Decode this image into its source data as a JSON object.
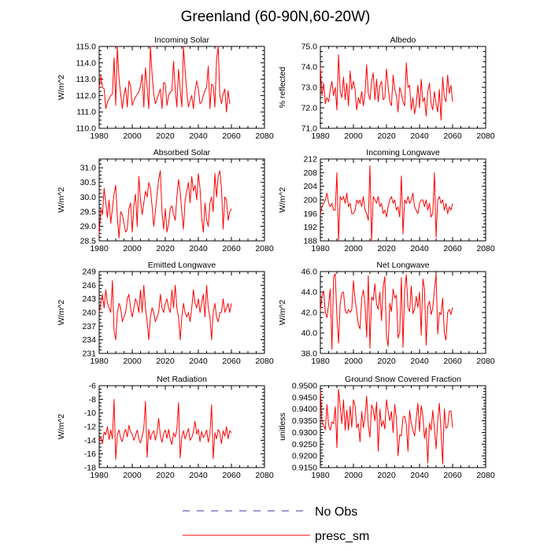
{
  "figure": {
    "title": "Greenland (60-90N,60-20W)"
  },
  "legend": {
    "entries": [
      {
        "label": "No Obs",
        "style": "dashed",
        "color": "#3a3aa0"
      },
      {
        "label": "presc_sm",
        "style": "solid",
        "color": "#ff0000"
      }
    ]
  },
  "colors": {
    "series": "#ff0000",
    "axis": "#000000"
  },
  "chart_data": [
    {
      "type": "line",
      "title": "Incoming Solar",
      "xlabel": "",
      "ylabel": "W/m^2",
      "xlim": [
        1980,
        2080
      ],
      "ylim": [
        110.0,
        115.0
      ],
      "xticks": [
        1980,
        2000,
        2020,
        2040,
        2060,
        2080
      ],
      "yticks": [
        110.0,
        111.0,
        112.0,
        113.0,
        114.0,
        115.0
      ],
      "ytick_labels": [
        "110.0",
        "111.0",
        "112.0",
        "113.0",
        "114.0",
        "115.0"
      ],
      "x_start": 1980,
      "x_step": 1,
      "series": [
        {
          "name": "presc_sm",
          "values": [
            112.5,
            113.2,
            112.5,
            112.4,
            111.2,
            111.6,
            111.8,
            112.0,
            112.1,
            114.3,
            111.4,
            115.0,
            113.0,
            112.1,
            111.2,
            112.0,
            112.5,
            111.3,
            112.9,
            112.6,
            111.4,
            111.7,
            111.9,
            112.1,
            112.2,
            112.6,
            113.3,
            111.3,
            113.7,
            112.5,
            111.2,
            115.0,
            113.3,
            112.1,
            111.5,
            111.8,
            112.1,
            112.4,
            111.2,
            112.8,
            112.7,
            111.4,
            112.0,
            112.2,
            112.3,
            114.1,
            112.4,
            111.3,
            113.6,
            112.4,
            111.3,
            115.0,
            113.5,
            112.2,
            111.3,
            111.7,
            112.0,
            111.2,
            112.3,
            112.9,
            112.4,
            111.5,
            111.6,
            112.0,
            112.3,
            112.5,
            113.8,
            111.2,
            112.7,
            112.6,
            111.3,
            114.2,
            115.0,
            112.0,
            111.5,
            112.1,
            112.4,
            111.0,
            112.3,
            111.5
          ]
        }
      ]
    },
    {
      "type": "line",
      "title": "Albedo",
      "xlabel": "",
      "ylabel": "% reflected",
      "xlim": [
        1980,
        2080
      ],
      "ylim": [
        71.0,
        75.0
      ],
      "xticks": [
        1980,
        2000,
        2020,
        2040,
        2060,
        2080
      ],
      "yticks": [
        71.0,
        72.0,
        73.0,
        74.0,
        75.0
      ],
      "ytick_labels": [
        "71.0",
        "72.0",
        "73.0",
        "74.0",
        "75.0"
      ],
      "x_start": 1980,
      "x_step": 1,
      "series": [
        {
          "name": "presc_sm",
          "values": [
            74.0,
            72.6,
            73.2,
            72.2,
            72.5,
            72.3,
            72.9,
            73.3,
            72.6,
            73.0,
            71.9,
            74.6,
            72.8,
            72.5,
            73.5,
            72.4,
            73.2,
            72.1,
            73.8,
            72.9,
            73.3,
            72.9,
            71.9,
            72.5,
            72.2,
            72.8,
            72.1,
            72.7,
            74.1,
            72.7,
            72.4,
            73.3,
            73.7,
            72.4,
            73.4,
            72.3,
            73.1,
            73.3,
            72.4,
            72.5,
            73.9,
            73.0,
            72.3,
            72.1,
            73.6,
            72.9,
            72.6,
            71.8,
            73.0,
            72.7,
            72.3,
            72.1,
            74.2,
            73.0,
            73.1,
            71.9,
            72.5,
            71.7,
            72.2,
            73.1,
            72.0,
            73.4,
            72.3,
            72.5,
            71.6,
            72.8,
            73.2,
            72.2,
            71.9,
            72.8,
            72.2,
            71.8,
            72.9,
            71.4,
            73.5,
            72.5,
            72.3,
            73.6,
            72.7,
            73.1,
            72.3
          ]
        }
      ]
    },
    {
      "type": "line",
      "title": "Absorbed Solar",
      "xlabel": "",
      "ylabel": "W/m^2",
      "xlim": [
        1980,
        2080
      ],
      "ylim": [
        28.5,
        31.3
      ],
      "xticks": [
        1980,
        2000,
        2020,
        2040,
        2060,
        2080
      ],
      "yticks": [
        28.5,
        29.0,
        29.5,
        30.0,
        30.5,
        31.0
      ],
      "ytick_labels": [
        "28.5",
        "29.0",
        "29.5",
        "30.0",
        "30.5",
        "31.0"
      ],
      "x_start": 1980,
      "x_step": 1,
      "series": [
        {
          "name": "presc_sm",
          "values": [
            28.7,
            29.6,
            29.4,
            30.3,
            29.8,
            29.3,
            29.9,
            29.1,
            29.6,
            30.1,
            30.4,
            29.3,
            28.6,
            29.5,
            29.4,
            29.1,
            28.8,
            28.9,
            29.6,
            29.8,
            28.8,
            29.7,
            30.1,
            29.0,
            30.7,
            29.9,
            29.4,
            29.8,
            30.2,
            30.0,
            30.5,
            30.3,
            29.7,
            29.0,
            29.5,
            30.1,
            30.6,
            30.9,
            29.5,
            28.9,
            29.6,
            28.8,
            29.1,
            29.6,
            29.7,
            29.4,
            29.2,
            30.0,
            30.6,
            30.2,
            29.5,
            28.9,
            29.9,
            30.2,
            30.5,
            29.8,
            30.7,
            30.2,
            30.4,
            29.9,
            30.8,
            30.3,
            29.3,
            28.8,
            29.8,
            29.2,
            29.0,
            29.8,
            30.0,
            29.5,
            30.8,
            30.0,
            30.7,
            30.9,
            30.3,
            28.9,
            30.0,
            29.9,
            29.2,
            29.5,
            29.6
          ]
        }
      ]
    },
    {
      "type": "line",
      "title": "Incoming Longwave",
      "xlabel": "",
      "ylabel": "W/m^2",
      "xlim": [
        1980,
        2080
      ],
      "ylim": [
        188,
        212
      ],
      "xticks": [
        1980,
        2000,
        2020,
        2040,
        2060,
        2080
      ],
      "yticks": [
        188,
        192,
        196,
        200,
        204,
        208,
        212
      ],
      "ytick_labels": [
        "188",
        "192",
        "196",
        "200",
        "204",
        "208",
        "212"
      ],
      "x_start": 1980,
      "x_step": 1,
      "series": [
        {
          "name": "presc_sm",
          "values": [
            196,
            198,
            199,
            200,
            202,
            199,
            198,
            199,
            197,
            197,
            208,
            188,
            201,
            200,
            201,
            199,
            202,
            198,
            199,
            196,
            196,
            197,
            200,
            199,
            200,
            198,
            201,
            197,
            196,
            194,
            210,
            188,
            201,
            200,
            199,
            201,
            198,
            199,
            196,
            197,
            195,
            198,
            200,
            201,
            199,
            200,
            197,
            198,
            195,
            207,
            190,
            200,
            199,
            201,
            199,
            200,
            202,
            198,
            197,
            196,
            199,
            200,
            200,
            198,
            200,
            197,
            199,
            195,
            196,
            208,
            189,
            200,
            201,
            199,
            200,
            197,
            199,
            196,
            198,
            197,
            199
          ]
        }
      ]
    },
    {
      "type": "line",
      "title": "Emitted Longwave",
      "xlabel": "",
      "ylabel": "W/m^2",
      "xlim": [
        1980,
        2080
      ],
      "ylim": [
        231,
        249
      ],
      "xticks": [
        1980,
        2000,
        2020,
        2040,
        2060,
        2080
      ],
      "yticks": [
        231,
        234,
        237,
        240,
        243,
        246,
        249
      ],
      "ytick_labels": [
        "231",
        "234",
        "237",
        "240",
        "243",
        "246",
        "249"
      ],
      "x_start": 1980,
      "x_step": 1,
      "series": [
        {
          "name": "presc_sm",
          "values": [
            240,
            242,
            244,
            241,
            245,
            242,
            241,
            240,
            247,
            236,
            234,
            240,
            242,
            241,
            238,
            239,
            240,
            243,
            244,
            241,
            239,
            241,
            243,
            242,
            240,
            245,
            240,
            246,
            241,
            238,
            234,
            239,
            241,
            240,
            238,
            239,
            240,
            244,
            241,
            240,
            242,
            243,
            241,
            240,
            245,
            241,
            246,
            241,
            239,
            234,
            239,
            242,
            240,
            239,
            240,
            238,
            241,
            245,
            242,
            241,
            243,
            240,
            242,
            244,
            239,
            246,
            241,
            239,
            234,
            240,
            242,
            239,
            238,
            240,
            240,
            243,
            240,
            241,
            242,
            240,
            242
          ]
        }
      ]
    },
    {
      "type": "line",
      "title": "Net Longwave",
      "xlabel": "",
      "ylabel": "W/m^2",
      "xlim": [
        1980,
        2080
      ],
      "ylim": [
        38.0,
        46.0
      ],
      "xticks": [
        1980,
        2000,
        2020,
        2040,
        2060,
        2080
      ],
      "yticks": [
        38.0,
        40.0,
        42.0,
        44.0,
        46.0
      ],
      "ytick_labels": [
        "38.0",
        "40.0",
        "42.0",
        "44.0",
        "46.0"
      ],
      "x_start": 1980,
      "x_step": 1,
      "series": [
        {
          "name": "presc_sm",
          "values": [
            42.2,
            43.6,
            44.1,
            42.0,
            41.5,
            42.8,
            44.3,
            38.4,
            45.4,
            45.8,
            41.6,
            39.0,
            42.9,
            43.9,
            44.0,
            42.2,
            41.9,
            42.3,
            42.0,
            42.3,
            45.1,
            43.3,
            42.1,
            40.8,
            40.4,
            43.4,
            44.2,
            42.9,
            39.6,
            45.6,
            38.5,
            43.5,
            43.2,
            44.8,
            42.8,
            42.3,
            44.0,
            41.2,
            44.5,
            45.5,
            39.7,
            38.7,
            42.9,
            42.1,
            44.3,
            43.4,
            43.7,
            39.5,
            40.0,
            45.4,
            38.6,
            44.2,
            45.7,
            42.5,
            42.1,
            44.6,
            41.9,
            42.3,
            43.6,
            42.5,
            44.0,
            39.8,
            45.3,
            44.3,
            38.8,
            42.6,
            43.1,
            41.8,
            42.4,
            44.2,
            45.8,
            39.9,
            42.0,
            41.8,
            43.4,
            40.0,
            39.3,
            42.0,
            42.3,
            41.8,
            42.5
          ]
        }
      ]
    },
    {
      "type": "line",
      "title": "Net Radiation",
      "xlabel": "",
      "ylabel": "W/m^2",
      "xlim": [
        1980,
        2080
      ],
      "ylim": [
        -18,
        -6
      ],
      "xticks": [
        1980,
        2000,
        2020,
        2040,
        2060,
        2080
      ],
      "yticks": [
        -18,
        -16,
        -14,
        -12,
        -10,
        -8,
        -6
      ],
      "ytick_labels": [
        "-18",
        "-16",
        "-14",
        "-12",
        "-10",
        "-8",
        "-6"
      ],
      "x_start": 1980,
      "x_step": 1,
      "series": [
        {
          "name": "presc_sm",
          "values": [
            -14.0,
            -13.5,
            -14.5,
            -12.8,
            -13.2,
            -12.0,
            -13.9,
            -12.5,
            -13.8,
            -8.0,
            -16.8,
            -13.2,
            -12.5,
            -13.7,
            -14.2,
            -13.0,
            -12.4,
            -13.5,
            -11.8,
            -12.8,
            -13.1,
            -14.0,
            -13.3,
            -12.5,
            -13.8,
            -14.4,
            -13.4,
            -12.3,
            -8.3,
            -16.5,
            -12.4,
            -13.9,
            -13.0,
            -12.6,
            -14.0,
            -12.9,
            -10.8,
            -13.3,
            -14.3,
            -13.0,
            -12.5,
            -13.7,
            -12.4,
            -13.9,
            -14.6,
            -12.9,
            -13.5,
            -12.4,
            -8.5,
            -16.6,
            -13.5,
            -12.6,
            -13.8,
            -13.0,
            -12.3,
            -14.0,
            -13.6,
            -12.8,
            -11.2,
            -13.1,
            -12.4,
            -14.2,
            -12.7,
            -13.6,
            -13.2,
            -12.5,
            -14.3,
            -13.1,
            -8.8,
            -16.7,
            -12.9,
            -13.8,
            -12.4,
            -13.0,
            -14.5,
            -12.6,
            -13.4,
            -12.0,
            -13.8,
            -12.6,
            -12.9
          ]
        }
      ]
    },
    {
      "type": "line",
      "title": "Ground Snow Covered Fraction",
      "xlabel": "",
      "ylabel": "unitless",
      "xlim": [
        1980,
        2080
      ],
      "ylim": [
        0.915,
        0.95
      ],
      "xticks": [
        1980,
        2000,
        2020,
        2040,
        2060,
        2080
      ],
      "yticks": [
        0.915,
        0.92,
        0.925,
        0.93,
        0.935,
        0.94,
        0.945,
        0.95
      ],
      "ytick_labels": [
        "0.9150",
        "0.9200",
        "0.9250",
        "0.9300",
        "0.9350",
        "0.9400",
        "0.9450",
        "0.9500"
      ],
      "x_start": 1980,
      "x_step": 1,
      "series": [
        {
          "name": "presc_sm",
          "values": [
            0.9478,
            0.9345,
            0.933,
            0.9312,
            0.942,
            0.933,
            0.931,
            0.9345,
            0.9338,
            0.941,
            0.9235,
            0.9485,
            0.941,
            0.9338,
            0.944,
            0.931,
            0.9395,
            0.931,
            0.9412,
            0.9322,
            0.944,
            0.9415,
            0.932,
            0.9338,
            0.926,
            0.939,
            0.932,
            0.9368,
            0.9455,
            0.933,
            0.928,
            0.9418,
            0.9398,
            0.935,
            0.943,
            0.922,
            0.94,
            0.9325,
            0.935,
            0.9315,
            0.944,
            0.939,
            0.935,
            0.939,
            0.93,
            0.942,
            0.9358,
            0.92,
            0.929,
            0.9285,
            0.9365,
            0.937,
            0.9335,
            0.922,
            0.9395,
            0.934,
            0.931,
            0.9285,
            0.936,
            0.9425,
            0.9305,
            0.9415,
            0.937,
            0.9275,
            0.932,
            0.917,
            0.934,
            0.931,
            0.9395,
            0.9315,
            0.923,
            0.935,
            0.9425,
            0.93,
            0.9165,
            0.94,
            0.9318,
            0.9325,
            0.939,
            0.9392,
            0.932
          ]
        }
      ]
    }
  ]
}
